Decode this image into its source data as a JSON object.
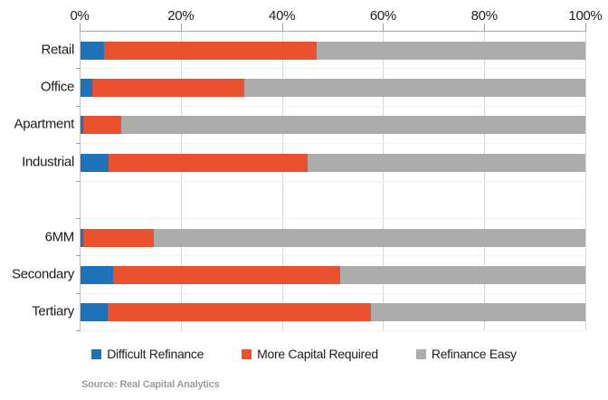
{
  "chart_data": {
    "type": "bar",
    "orientation": "horizontal",
    "stacked": true,
    "categories": [
      "Retail",
      "Office",
      "Apartment",
      "Industrial",
      "",
      "6MM",
      "Secondary",
      "Tertiary"
    ],
    "series": [
      {
        "name": "Difficult Refinance",
        "color": "#1f72b8",
        "values": [
          4.6,
          2.3,
          0.5,
          5.5,
          0,
          0.6,
          6.4,
          5.4
        ]
      },
      {
        "name": "More Capital Required",
        "color": "#e8502e",
        "values": [
          42.2,
          30.2,
          7.6,
          39.4,
          0,
          14.0,
          45.0,
          52.1
        ]
      },
      {
        "name": "Refinance Easy",
        "color": "#acacac",
        "values": [
          53.2,
          67.5,
          91.9,
          55.1,
          0,
          85.4,
          48.6,
          42.5
        ]
      }
    ],
    "x_axis": {
      "position": "top",
      "min": 0,
      "max": 100,
      "tick_step": 20,
      "tick_labels": [
        "0%",
        "20%",
        "40%",
        "60%",
        "80%",
        "100%"
      ]
    },
    "grid": {
      "vertical": true,
      "horizontal_row_separators": true
    },
    "legend": {
      "position": "bottom",
      "entries": [
        "Difficult Refinance",
        "More Capital Required",
        "Refinance Easy"
      ]
    },
    "title": "",
    "xlabel": "",
    "ylabel": ""
  },
  "footer": {
    "source": "Source: Real Capital Analytics"
  }
}
